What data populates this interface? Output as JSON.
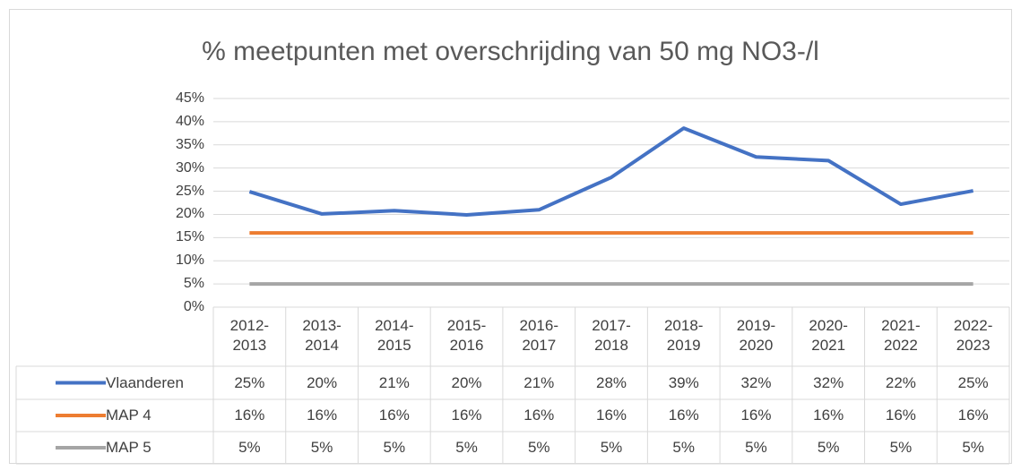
{
  "chart_data": {
    "type": "line",
    "title": "% meetpunten met overschrijding van 50 mg NO3-/l",
    "categories": [
      "2012-2013",
      "2013-2014",
      "2014-2015",
      "2015-2016",
      "2016-2017",
      "2017-2018",
      "2018-2019",
      "2019-2020",
      "2020-2021",
      "2021-2022",
      "2022-2023"
    ],
    "series": [
      {
        "name": "Vlaanderen",
        "color": "#4472c4",
        "values": [
          24.9,
          20.1,
          20.8,
          19.9,
          21.0,
          28.0,
          38.6,
          32.4,
          31.6,
          22.2,
          25.1
        ],
        "value_labels": [
          "25%",
          "20%",
          "21%",
          "20%",
          "21%",
          "28%",
          "39%",
          "32%",
          "32%",
          "22%",
          "25%"
        ]
      },
      {
        "name": "MAP 4",
        "color": "#ed7d31",
        "values": [
          16,
          16,
          16,
          16,
          16,
          16,
          16,
          16,
          16,
          16,
          16
        ],
        "value_labels": [
          "16%",
          "16%",
          "16%",
          "16%",
          "16%",
          "16%",
          "16%",
          "16%",
          "16%",
          "16%",
          "16%"
        ]
      },
      {
        "name": "MAP 5",
        "color": "#a5a5a5",
        "values": [
          5,
          5,
          5,
          5,
          5,
          5,
          5,
          5,
          5,
          5,
          5
        ],
        "value_labels": [
          "5%",
          "5%",
          "5%",
          "5%",
          "5%",
          "5%",
          "5%",
          "5%",
          "5%",
          "5%",
          "5%"
        ]
      }
    ],
    "ylim": [
      0,
      45
    ],
    "yticks": [
      {
        "value": 0,
        "label": "0%"
      },
      {
        "value": 5,
        "label": "5%"
      },
      {
        "value": 10,
        "label": "10%"
      },
      {
        "value": 15,
        "label": "15%"
      },
      {
        "value": 20,
        "label": "20%"
      },
      {
        "value": 25,
        "label": "25%"
      },
      {
        "value": 30,
        "label": "30%"
      },
      {
        "value": 35,
        "label": "35%"
      },
      {
        "value": 40,
        "label": "40%"
      },
      {
        "value": 45,
        "label": "45%"
      }
    ],
    "grid": true
  }
}
